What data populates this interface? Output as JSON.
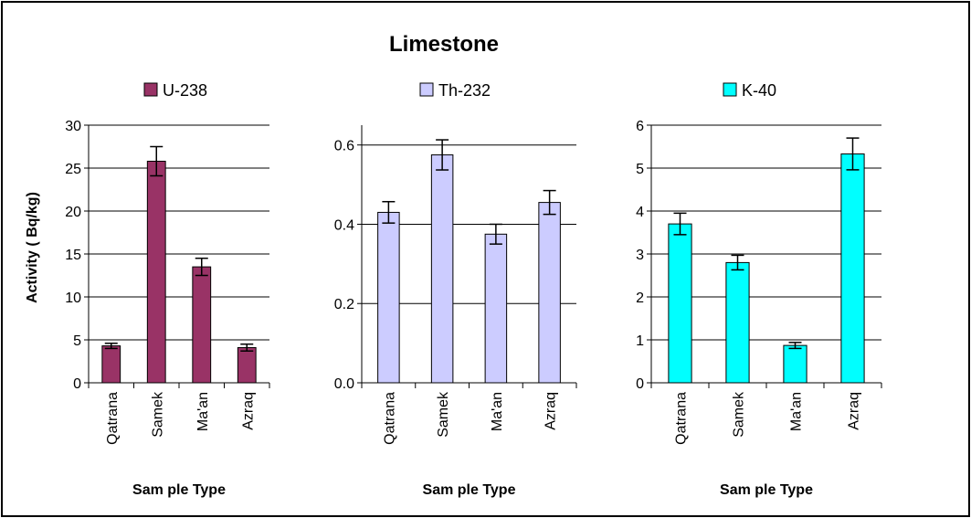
{
  "title": "Limestone",
  "ylabel": "Activity ( Bq/kg)",
  "chart_data": [
    {
      "type": "bar",
      "series_name": "U-238",
      "color": "#993366",
      "categories": [
        "Qatrana",
        "Samek",
        "Ma'an",
        "Azraq"
      ],
      "values": [
        4.3,
        25.8,
        13.5,
        4.1
      ],
      "errors": [
        0.3,
        1.7,
        1.0,
        0.4
      ],
      "ylim": [
        0,
        30
      ],
      "yticks": [
        "0",
        "5",
        "10",
        "15",
        "20",
        "25",
        "30"
      ],
      "xlabel": "Sam ple Type"
    },
    {
      "type": "bar",
      "series_name": "Th-232",
      "color": "#ccccff",
      "categories": [
        "Qatrana",
        "Samek",
        "Ma'an",
        "Azraq"
      ],
      "values": [
        0.43,
        0.575,
        0.375,
        0.455
      ],
      "errors": [
        0.027,
        0.038,
        0.025,
        0.03
      ],
      "ylim": [
        0,
        0.65
      ],
      "yticks": [
        "0.0",
        "0.2",
        "0.4",
        "0.6"
      ],
      "ytick_values": [
        0,
        0.2,
        0.4,
        0.6
      ],
      "xlabel": "Sam ple Type"
    },
    {
      "type": "bar",
      "series_name": "K-40",
      "color": "#00ffff",
      "categories": [
        "Qatrana",
        "Samek",
        "Ma'an",
        "Azraq"
      ],
      "values": [
        3.7,
        2.8,
        0.87,
        5.33
      ],
      "errors": [
        0.25,
        0.17,
        0.07,
        0.37
      ],
      "ylim": [
        0,
        6
      ],
      "yticks": [
        "0",
        "1",
        "2",
        "3",
        "4",
        "5",
        "6"
      ],
      "xlabel": "Sam ple Type"
    }
  ]
}
